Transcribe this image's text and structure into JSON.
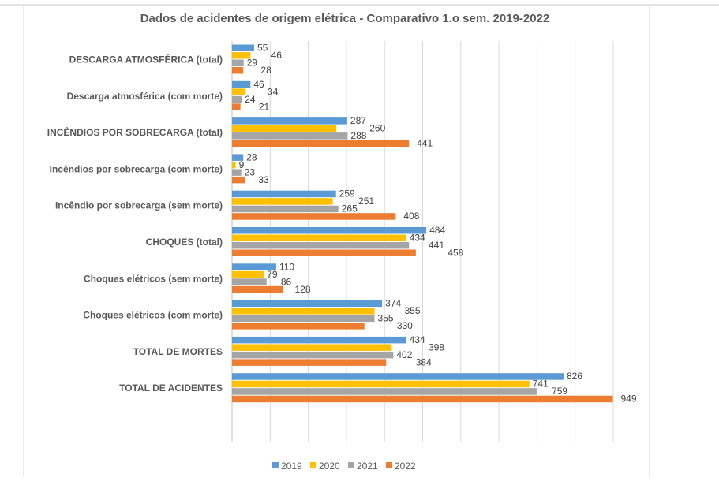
{
  "chart_data": {
    "type": "bar",
    "orientation": "horizontal",
    "title": "Dados de acidentes de origem elétrica - Comparativo 1.o sem. 2019-2022",
    "categories": [
      "DESCARGA ATMOSFÉRICA (total)",
      "Descarga atmosférica (com morte)",
      "INCÊNDIOS POR SOBRECARGA (total)",
      "Incêndios por sobrecarga (com morte)",
      "Incêndio por sobrecarga (sem morte)",
      "CHOQUES (total)",
      "Choques elétricos (sem morte)",
      "Choques elétricos (com morte)",
      "TOTAL DE MORTES",
      "TOTAL DE ACIDENTES"
    ],
    "series": [
      {
        "name": "2019",
        "color": "#5B9BD5",
        "values": [
          55,
          46,
          287,
          28,
          259,
          484,
          110,
          374,
          434,
          826
        ]
      },
      {
        "name": "2020",
        "color": "#FFC000",
        "values": [
          46,
          34,
          260,
          9,
          251,
          434,
          79,
          355,
          398,
          741
        ]
      },
      {
        "name": "2021",
        "color": "#A5A5A5",
        "values": [
          29,
          24,
          288,
          23,
          265,
          441,
          86,
          355,
          402,
          759
        ]
      },
      {
        "name": "2022",
        "color": "#ED7D31",
        "values": [
          28,
          21,
          441,
          33,
          408,
          458,
          128,
          330,
          384,
          949
        ]
      }
    ],
    "xlim": [
      0,
      950
    ],
    "grid": true,
    "data_labels": true,
    "legend": "bottom"
  }
}
